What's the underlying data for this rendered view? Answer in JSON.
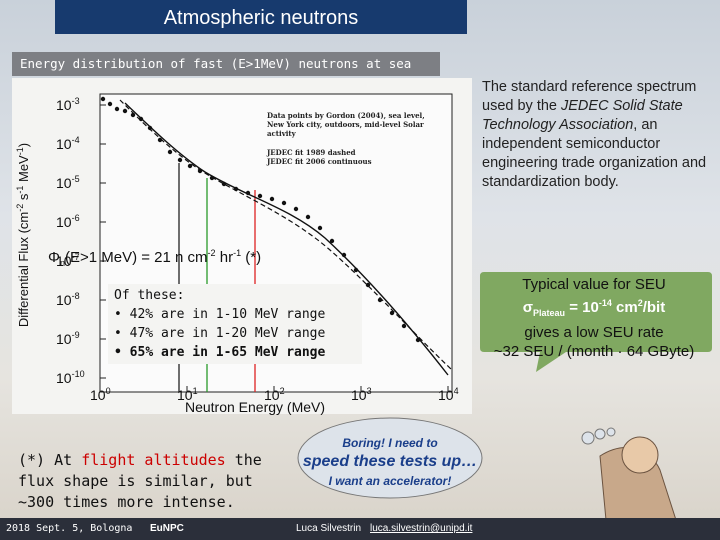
{
  "slide": {
    "title": "Atmospheric neutrons",
    "subtitle": "Energy distribution of fast (E>1MeV) neutrons at sea level",
    "plot": {
      "y_label": {
        "main": "Differential Flux (cm",
        "e1": "-2",
        "m2": " s",
        "e2": "-1",
        "m3": " MeV",
        "e3": "-1",
        "end": ")"
      },
      "x_label": "Neutron Energy (MeV)",
      "y_ticks": [
        {
          "base": "10",
          "exp": "-3"
        },
        {
          "base": "10",
          "exp": "-4"
        },
        {
          "base": "10",
          "exp": "-5"
        },
        {
          "base": "10",
          "exp": "-6"
        },
        {
          "base": "10",
          "exp": "-7"
        },
        {
          "base": "10",
          "exp": "-8"
        },
        {
          "base": "10",
          "exp": "-9"
        },
        {
          "base": "10",
          "exp": "-10"
        }
      ],
      "x_ticks": [
        {
          "base": "10",
          "exp": "0"
        },
        {
          "base": "10",
          "exp": "1"
        },
        {
          "base": "10",
          "exp": "2"
        },
        {
          "base": "10",
          "exp": "3"
        },
        {
          "base": "10",
          "exp": "4"
        }
      ],
      "legend": [
        "Data points by Gordon (2004), sea level,",
        "New York city, outdoors, mid-level Solar",
        "activity",
        "JEDEC fit 1989 dashed",
        "JEDEC fit 2006 continuous"
      ]
    },
    "flux": {
      "phi": "Φ",
      "sub": "n",
      "a": "(E>1 MeV) = 21 n cm",
      "e1": "-2",
      "b": " hr",
      "e2": "-1",
      "c": " (*)"
    },
    "breakdown": {
      "head": "Of these:",
      "items": [
        "• 42% are in 1-10 MeV range",
        "• 47% are in 1-20 MeV range"
      ],
      "last": {
        "a": "• 65",
        "b": "% are in 1-65 MeV range"
      }
    },
    "description": {
      "a": "The standard reference spectrum used by the ",
      "b": "JEDEC Solid State Technology Association",
      "c": ", an independent semiconductor engineering trade organization and standardization body."
    },
    "callout": {
      "l1": "Typical value for SEU",
      "sigma": "σ",
      "sub": "Plateau",
      "eq": " = 10",
      "e1": "-14",
      "unit": " cm",
      "e2": "2",
      "unit2": "/bit",
      "l3": "gives a low SEU rate",
      "l4": "~32 SEU / (month · 64 GByte)"
    },
    "bubble": {
      "l1": "Boring! I need to",
      "l2": "speed these tests up",
      "l2b": "…",
      "l3a": "I want an ",
      "l3b": "accelerator",
      "l3c": "!"
    },
    "footnote": {
      "a": "(*) At ",
      "b": "flight altitudes",
      "c": " the flux shape is similar, but ~300 times more intense."
    },
    "footer": {
      "date": "2018 Sept. 5, Bologna",
      "conf": "EuNPC",
      "author": "Luca Silvestrin",
      "email": "luca.silvestrin@unipd.it"
    }
  }
}
